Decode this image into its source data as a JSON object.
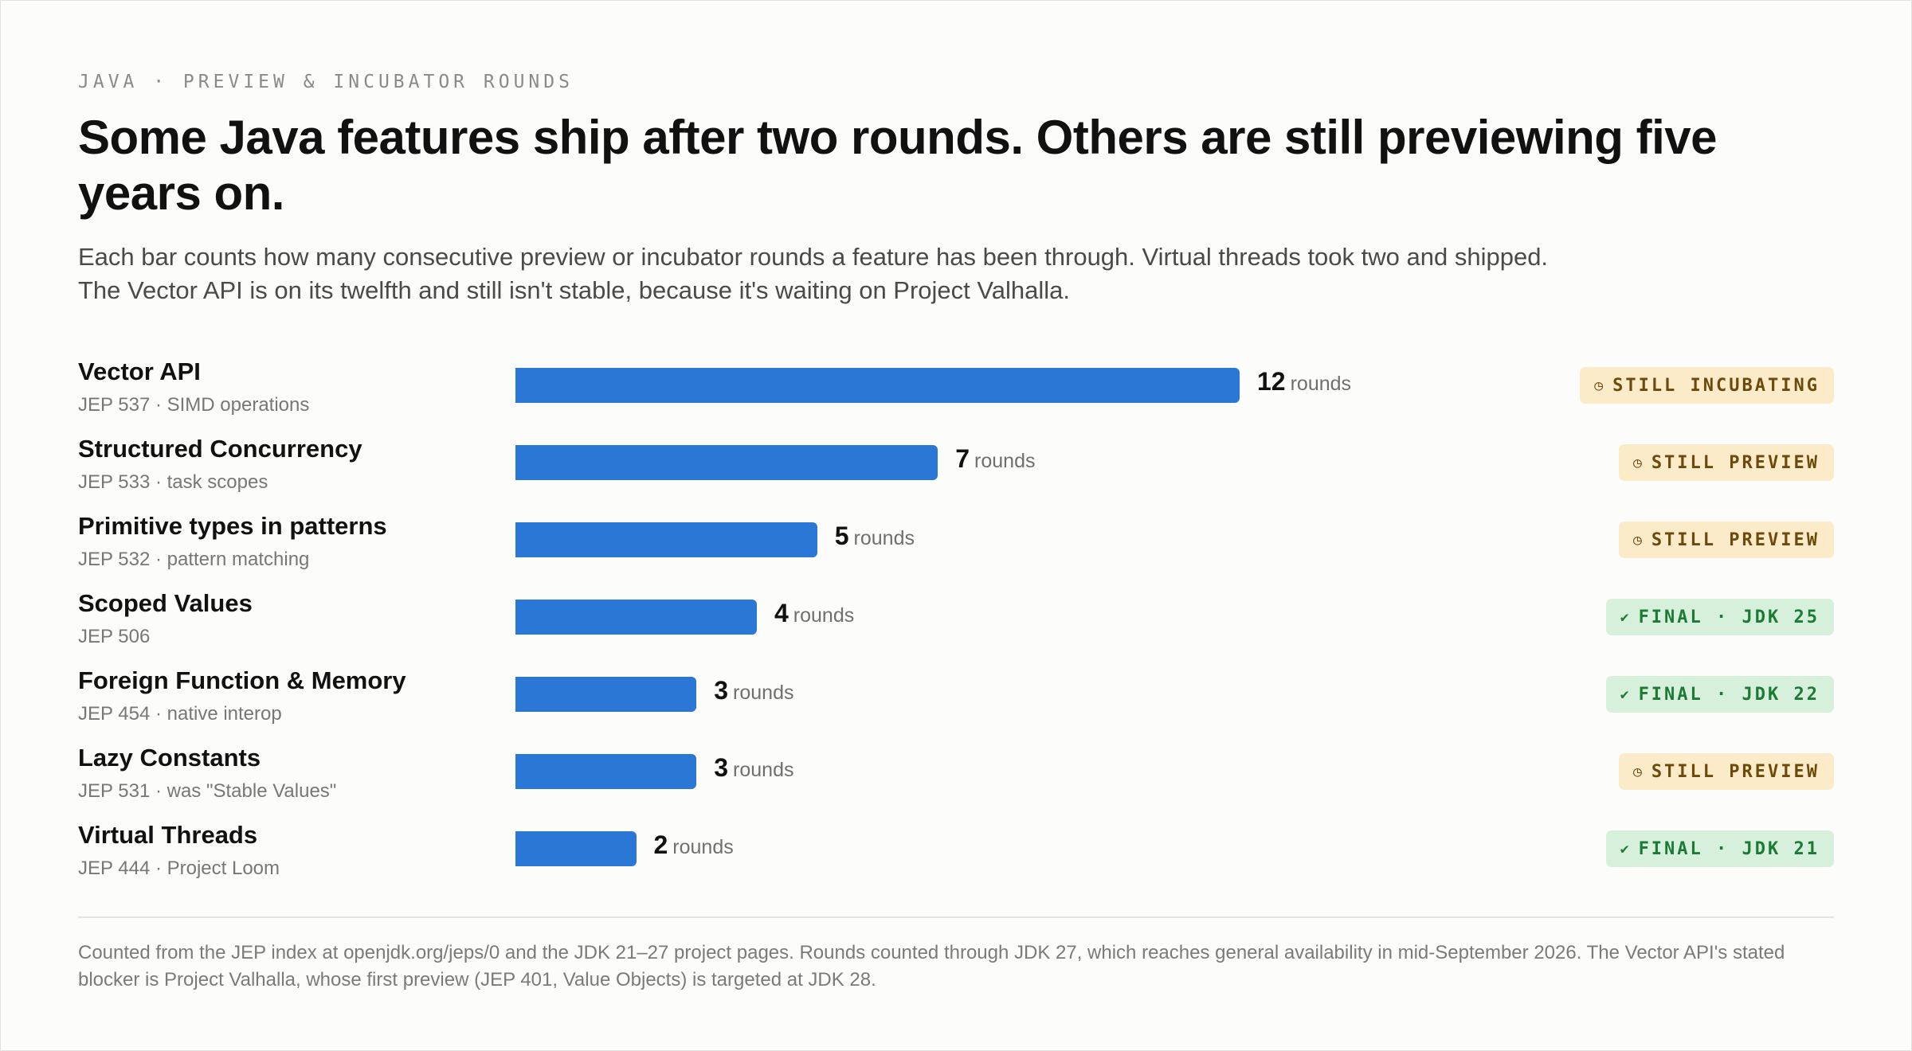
{
  "kicker": "JAVA · PREVIEW & INCUBATOR ROUNDS",
  "title": "Some Java features ship after two rounds. Others are still previewing five years on.",
  "subtitle": "Each bar counts how many consecutive preview or incubator rounds a feature has been through. Virtual threads took two and shipped. The Vector API is on its twelfth and still isn't stable, because it's waiting on Project Valhalla.",
  "footnote": "Counted from the JEP index at openjdk.org/jeps/0 and the JDK 21–27 project pages. Rounds counted through JDK 27, which reaches general availability in mid-September 2026. The Vector API's stated blocker is Project Valhalla, whose first preview (JEP 401, Value Objects) is targeted at JDK 28.",
  "colors": {
    "bar": "#2b77d6",
    "preview_bg": "#fcebc8",
    "preview_text": "#6b4a0c",
    "final_bg": "#d7f0dc",
    "final_text": "#1b7a34"
  },
  "chart_data": {
    "type": "bar",
    "orientation": "horizontal",
    "value_unit": "rounds",
    "xlim": [
      0,
      12
    ],
    "grid": false,
    "categories": [
      "Vector API",
      "Structured Concurrency",
      "Primitive types in patterns",
      "Scoped Values",
      "Foreign Function & Memory",
      "Lazy Constants",
      "Virtual Threads"
    ],
    "values": [
      12,
      7,
      5,
      4,
      3,
      3,
      2
    ],
    "rows": [
      {
        "name": "Vector API",
        "meta": "JEP 537 · SIMD operations",
        "value": 12,
        "status": "STILL INCUBATING",
        "status_kind": "preview",
        "status_icon": "clock-icon"
      },
      {
        "name": "Structured Concurrency",
        "meta": "JEP 533 · task scopes",
        "value": 7,
        "status": "STILL PREVIEW",
        "status_kind": "preview",
        "status_icon": "clock-icon"
      },
      {
        "name": "Primitive types in patterns",
        "meta": "JEP 532 · pattern matching",
        "value": 5,
        "status": "STILL PREVIEW",
        "status_kind": "preview",
        "status_icon": "clock-icon"
      },
      {
        "name": "Scoped Values",
        "meta": "JEP 506",
        "value": 4,
        "status": "FINAL · JDK 25",
        "status_kind": "final",
        "status_icon": "check-icon"
      },
      {
        "name": "Foreign Function & Memory",
        "meta": "JEP 454 · native interop",
        "value": 3,
        "status": "FINAL · JDK 22",
        "status_kind": "final",
        "status_icon": "check-icon"
      },
      {
        "name": "Lazy Constants",
        "meta": "JEP 531 · was \"Stable Values\"",
        "value": 3,
        "status": "STILL PREVIEW",
        "status_kind": "preview",
        "status_icon": "clock-icon"
      },
      {
        "name": "Virtual Threads",
        "meta": "JEP 444 · Project Loom",
        "value": 2,
        "status": "FINAL · JDK 21",
        "status_kind": "final",
        "status_icon": "check-icon"
      }
    ]
  }
}
